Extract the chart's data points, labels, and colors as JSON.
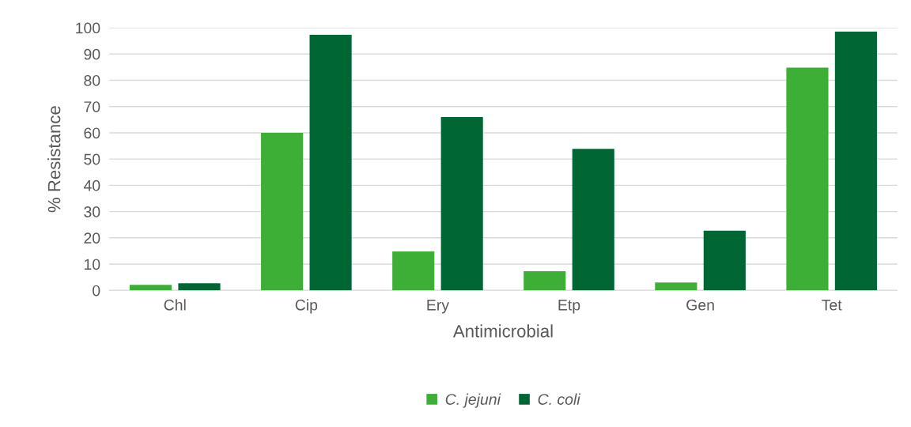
{
  "chart_data": {
    "type": "bar",
    "xlabel": "Antimicrobial",
    "ylabel": "% Resistance",
    "categories": [
      "Chl",
      "Cip",
      "Ery",
      "Etp",
      "Gen",
      "Tet"
    ],
    "series": [
      {
        "name": "C. jejuni",
        "color": "#3dae36",
        "values": [
          2.1,
          60,
          14.8,
          7.3,
          3,
          84.8
        ]
      },
      {
        "name": "C. coli",
        "color": "#006634",
        "values": [
          2.7,
          97.3,
          66,
          53.9,
          22.7,
          98.5
        ]
      }
    ],
    "ylim": [
      0,
      100
    ],
    "yticks": [
      0,
      10,
      20,
      30,
      40,
      50,
      60,
      70,
      80,
      90,
      100
    ],
    "grid": "y",
    "legend": "bottom"
  }
}
